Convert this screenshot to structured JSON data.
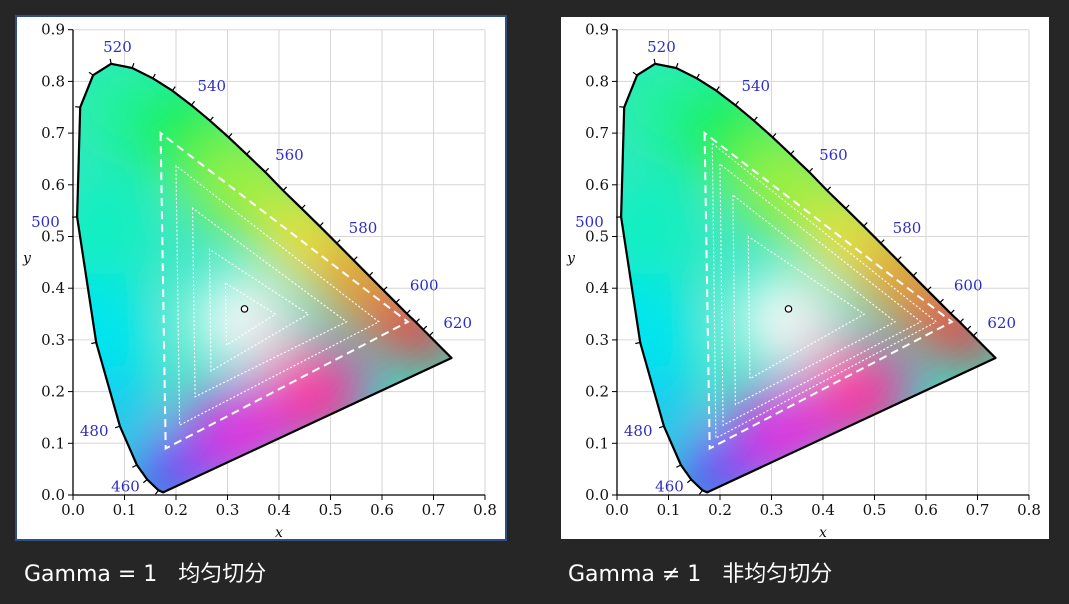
{
  "panels": [
    {
      "id": "left",
      "caption": "Gamma = 1   均匀切分",
      "chart_data": {
        "type": "chromaticity-diagram",
        "xlabel": "x",
        "ylabel": "y",
        "xlim": [
          0.0,
          0.8
        ],
        "ylim": [
          0.0,
          0.9
        ],
        "x_ticks": [
          "0.0",
          "0.1",
          "0.2",
          "0.3",
          "0.4",
          "0.5",
          "0.6",
          "0.7",
          "0.8"
        ],
        "y_ticks": [
          "0.0",
          "0.1",
          "0.2",
          "0.3",
          "0.4",
          "0.5",
          "0.6",
          "0.7",
          "0.8",
          "0.9"
        ],
        "grid": true,
        "spectral_locus": [
          [
            0.175,
            0.005
          ],
          [
            0.166,
            0.009
          ],
          [
            0.144,
            0.03
          ],
          [
            0.124,
            0.058
          ],
          [
            0.091,
            0.133
          ],
          [
            0.045,
            0.295
          ],
          [
            0.008,
            0.538
          ],
          [
            0.014,
            0.75
          ],
          [
            0.039,
            0.812
          ],
          [
            0.074,
            0.834
          ],
          [
            0.115,
            0.826
          ],
          [
            0.155,
            0.806
          ],
          [
            0.193,
            0.782
          ],
          [
            0.23,
            0.754
          ],
          [
            0.266,
            0.724
          ],
          [
            0.302,
            0.692
          ],
          [
            0.337,
            0.659
          ],
          [
            0.373,
            0.625
          ],
          [
            0.408,
            0.589
          ],
          [
            0.444,
            0.554
          ],
          [
            0.479,
            0.52
          ],
          [
            0.512,
            0.487
          ],
          [
            0.545,
            0.454
          ],
          [
            0.575,
            0.424
          ],
          [
            0.603,
            0.396
          ],
          [
            0.627,
            0.372
          ],
          [
            0.648,
            0.351
          ],
          [
            0.666,
            0.334
          ],
          [
            0.68,
            0.32
          ],
          [
            0.692,
            0.308
          ],
          [
            0.735,
            0.265
          ]
        ],
        "wavelength_labels": [
          {
            "label": "460",
            "x": 0.144,
            "y": 0.03
          },
          {
            "label": "480",
            "x": 0.091,
            "y": 0.133
          },
          {
            "label": "500",
            "x": 0.008,
            "y": 0.538
          },
          {
            "label": "520",
            "x": 0.074,
            "y": 0.834
          },
          {
            "label": "540",
            "x": 0.23,
            "y": 0.754
          },
          {
            "label": "560",
            "x": 0.373,
            "y": 0.625
          },
          {
            "label": "580",
            "x": 0.512,
            "y": 0.487
          },
          {
            "label": "600",
            "x": 0.627,
            "y": 0.372
          },
          {
            "label": "620",
            "x": 0.692,
            "y": 0.308
          }
        ],
        "white_point": [
          0.333,
          0.36
        ],
        "triangles": [
          {
            "vertices": [
              [
                0.17,
                0.7
              ],
              [
                0.18,
                0.09
              ],
              [
                0.65,
                0.335
              ]
            ],
            "style": "dashed"
          },
          {
            "vertices": [
              [
                0.2,
                0.637
              ],
              [
                0.207,
                0.135
              ],
              [
                0.594,
                0.335
              ]
            ],
            "style": "dotted"
          },
          {
            "vertices": [
              [
                0.232,
                0.555
              ],
              [
                0.237,
                0.19
              ],
              [
                0.531,
                0.335
              ]
            ],
            "style": "dotted"
          },
          {
            "vertices": [
              [
                0.265,
                0.475
              ],
              [
                0.268,
                0.24
              ],
              [
                0.457,
                0.35
              ]
            ],
            "style": "dotted"
          },
          {
            "vertices": [
              [
                0.296,
                0.41
              ],
              [
                0.298,
                0.29
              ],
              [
                0.393,
                0.35
              ]
            ],
            "style": "dotted"
          }
        ]
      }
    },
    {
      "id": "right",
      "caption": "Gamma ≠ 1   非均匀切分",
      "chart_data": {
        "type": "chromaticity-diagram",
        "xlabel": "x",
        "ylabel": "y",
        "xlim": [
          0.0,
          0.8
        ],
        "ylim": [
          0.0,
          0.9
        ],
        "x_ticks": [
          "0.0",
          "0.1",
          "0.2",
          "0.3",
          "0.4",
          "0.5",
          "0.6",
          "0.7",
          "0.8"
        ],
        "y_ticks": [
          "0.0",
          "0.1",
          "0.2",
          "0.3",
          "0.4",
          "0.5",
          "0.6",
          "0.7",
          "0.8",
          "0.9"
        ],
        "grid": true,
        "spectral_locus": [
          [
            0.175,
            0.005
          ],
          [
            0.166,
            0.009
          ],
          [
            0.144,
            0.03
          ],
          [
            0.124,
            0.058
          ],
          [
            0.091,
            0.133
          ],
          [
            0.045,
            0.295
          ],
          [
            0.008,
            0.538
          ],
          [
            0.014,
            0.75
          ],
          [
            0.039,
            0.812
          ],
          [
            0.074,
            0.834
          ],
          [
            0.115,
            0.826
          ],
          [
            0.155,
            0.806
          ],
          [
            0.193,
            0.782
          ],
          [
            0.23,
            0.754
          ],
          [
            0.266,
            0.724
          ],
          [
            0.302,
            0.692
          ],
          [
            0.337,
            0.659
          ],
          [
            0.373,
            0.625
          ],
          [
            0.408,
            0.589
          ],
          [
            0.444,
            0.554
          ],
          [
            0.479,
            0.52
          ],
          [
            0.512,
            0.487
          ],
          [
            0.545,
            0.454
          ],
          [
            0.575,
            0.424
          ],
          [
            0.603,
            0.396
          ],
          [
            0.627,
            0.372
          ],
          [
            0.648,
            0.351
          ],
          [
            0.666,
            0.334
          ],
          [
            0.68,
            0.32
          ],
          [
            0.692,
            0.308
          ],
          [
            0.735,
            0.265
          ]
        ],
        "wavelength_labels": [
          {
            "label": "460",
            "x": 0.144,
            "y": 0.03
          },
          {
            "label": "480",
            "x": 0.091,
            "y": 0.133
          },
          {
            "label": "500",
            "x": 0.008,
            "y": 0.538
          },
          {
            "label": "520",
            "x": 0.074,
            "y": 0.834
          },
          {
            "label": "540",
            "x": 0.23,
            "y": 0.754
          },
          {
            "label": "560",
            "x": 0.373,
            "y": 0.625
          },
          {
            "label": "580",
            "x": 0.512,
            "y": 0.487
          },
          {
            "label": "600",
            "x": 0.627,
            "y": 0.372
          },
          {
            "label": "620",
            "x": 0.692,
            "y": 0.308
          }
        ],
        "white_point": [
          0.333,
          0.36
        ],
        "triangles": [
          {
            "vertices": [
              [
                0.17,
                0.7
              ],
              [
                0.18,
                0.09
              ],
              [
                0.65,
                0.335
              ]
            ],
            "style": "dashed"
          },
          {
            "vertices": [
              [
                0.185,
                0.68
              ],
              [
                0.192,
                0.11
              ],
              [
                0.62,
                0.335
              ]
            ],
            "style": "dotted"
          },
          {
            "vertices": [
              [
                0.2,
                0.64
              ],
              [
                0.206,
                0.135
              ],
              [
                0.59,
                0.335
              ]
            ],
            "style": "dotted"
          },
          {
            "vertices": [
              [
                0.225,
                0.58
              ],
              [
                0.23,
                0.175
              ],
              [
                0.54,
                0.335
              ]
            ],
            "style": "dotted"
          },
          {
            "vertices": [
              [
                0.255,
                0.5
              ],
              [
                0.258,
                0.225
              ],
              [
                0.48,
                0.35
              ]
            ],
            "style": "dotted"
          }
        ]
      }
    }
  ]
}
